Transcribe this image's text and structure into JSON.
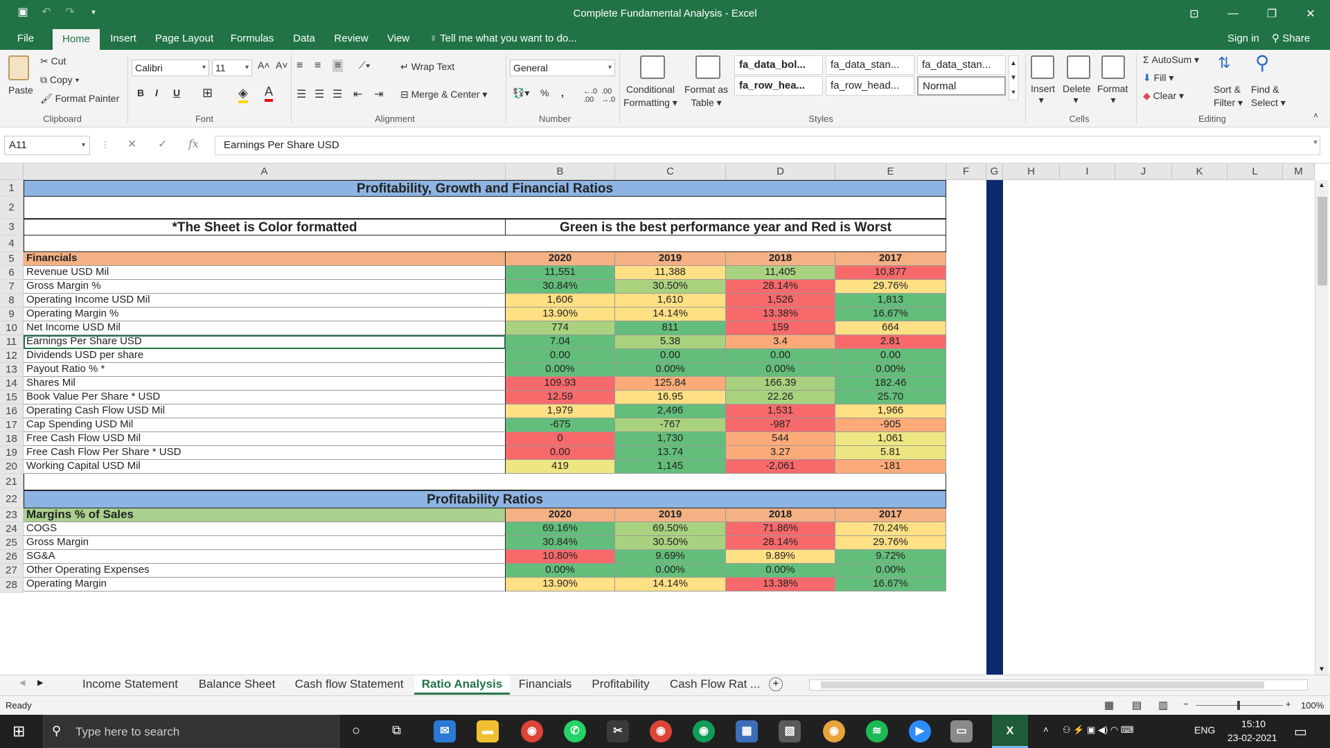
{
  "window": {
    "title": "Complete Fundamental Analysis - Excel",
    "qat_icons": [
      "save-icon",
      "undo-icon",
      "redo-icon",
      "customize-qat-icon"
    ],
    "controls": [
      "ribbon-display-icon",
      "minimize-icon",
      "restore-icon",
      "close-icon"
    ]
  },
  "tabs": [
    "File",
    "Home",
    "Insert",
    "Page Layout",
    "Formulas",
    "Data",
    "Review",
    "View"
  ],
  "active_tab": "Home",
  "tell_me": "Tell me what you want to do...",
  "sign_in": "Sign in",
  "share": "Share",
  "ribbon": {
    "clipboard": {
      "paste": "Paste",
      "cut": "Cut",
      "copy": "Copy",
      "format_painter": "Format Painter",
      "label": "Clipboard"
    },
    "font": {
      "name": "Calibri",
      "size": "11",
      "bold": "B",
      "italic": "I",
      "underline": "U",
      "label": "Font"
    },
    "alignment": {
      "wrap": "Wrap Text",
      "merge": "Merge & Center",
      "label": "Alignment"
    },
    "number": {
      "format": "General",
      "label": "Number"
    },
    "styles": {
      "conditional": [
        "Conditional",
        "Formatting"
      ],
      "format_table": [
        "Format as",
        "Table"
      ],
      "items": [
        "fa_data_bol...",
        "fa_data_stan...",
        "fa_data_stan...",
        "fa_row_hea...",
        "fa_row_head...",
        "Normal"
      ],
      "label": "Styles"
    },
    "cells": {
      "insert": "Insert",
      "delete": "Delete",
      "format": "Format",
      "label": "Cells"
    },
    "editing": {
      "autosum": "AutoSum",
      "fill": "Fill",
      "clear": "Clear",
      "sort": [
        "Sort &",
        "Filter"
      ],
      "find": [
        "Find &",
        "Select"
      ],
      "label": "Editing"
    }
  },
  "namebox": "A11",
  "formula": "Earnings Per Share USD",
  "columns": [
    "A",
    "B",
    "C",
    "D",
    "E",
    "F",
    "G",
    "H",
    "I",
    "J",
    "K",
    "L",
    "M"
  ],
  "row_numbers": [
    "1",
    "2",
    "3",
    "4",
    "5",
    "6",
    "7",
    "8",
    "9",
    "10",
    "11",
    "12",
    "13",
    "14",
    "15",
    "16",
    "17",
    "18",
    "19",
    "20",
    "21",
    "22",
    "23",
    "24",
    "25",
    "26",
    "27",
    "28"
  ],
  "sheet": {
    "title": "Profitability, Growth and Financial Ratios",
    "note_left": "*The Sheet is Color formatted",
    "note_right": "Green is the best performance year and Red is Worst",
    "years": [
      "2020",
      "2019",
      "2018",
      "2017"
    ],
    "financials_header": "Financials",
    "financials": [
      {
        "label": "Revenue USD Mil",
        "values": [
          "11,551",
          "11,388",
          "11,405",
          "10,877"
        ],
        "colors": [
          "g",
          "y",
          "lg",
          "r"
        ]
      },
      {
        "label": "Gross Margin %",
        "values": [
          "30.84%",
          "30.50%",
          "28.14%",
          "29.76%"
        ],
        "colors": [
          "g",
          "lg",
          "r",
          "y"
        ]
      },
      {
        "label": "Operating Income USD Mil",
        "values": [
          "1,606",
          "1,610",
          "1,526",
          "1,813"
        ],
        "colors": [
          "y",
          "y",
          "r",
          "g"
        ]
      },
      {
        "label": "Operating Margin %",
        "values": [
          "13.90%",
          "14.14%",
          "13.38%",
          "16.67%"
        ],
        "colors": [
          "y",
          "y",
          "r",
          "g"
        ]
      },
      {
        "label": "Net Income USD Mil",
        "values": [
          "774",
          "811",
          "159",
          "664"
        ],
        "colors": [
          "lg",
          "g",
          "r",
          "y"
        ]
      },
      {
        "label": "Earnings Per Share USD",
        "values": [
          "7.04",
          "5.38",
          "3.4",
          "2.81"
        ],
        "colors": [
          "g",
          "lg",
          "o",
          "r"
        ]
      },
      {
        "label": "Dividends USD per share",
        "values": [
          "0.00",
          "0.00",
          "0.00",
          "0.00"
        ],
        "colors": [
          "g",
          "g",
          "g",
          "g"
        ]
      },
      {
        "label": "Payout Ratio % *",
        "values": [
          "0.00%",
          "0.00%",
          "0.00%",
          "0.00%"
        ],
        "colors": [
          "g",
          "g",
          "g",
          "g"
        ]
      },
      {
        "label": "Shares Mil",
        "values": [
          "109.93",
          "125.84",
          "166.39",
          "182.46"
        ],
        "colors": [
          "r",
          "o",
          "lg",
          "g"
        ]
      },
      {
        "label": "Book Value Per Share * USD",
        "values": [
          "12.59",
          "16.95",
          "22.26",
          "25.70"
        ],
        "colors": [
          "r",
          "y",
          "lg",
          "g"
        ]
      },
      {
        "label": "Operating Cash Flow USD Mil",
        "values": [
          "1,979",
          "2,496",
          "1,531",
          "1,966"
        ],
        "colors": [
          "y",
          "g",
          "r",
          "y"
        ]
      },
      {
        "label": "Cap Spending USD Mil",
        "values": [
          "-675",
          "-767",
          "-987",
          "-905"
        ],
        "colors": [
          "g",
          "lg",
          "r",
          "o"
        ]
      },
      {
        "label": "Free Cash Flow USD Mil",
        "values": [
          "0",
          "1,730",
          "544",
          "1,061"
        ],
        "colors": [
          "r",
          "g",
          "o",
          "yl"
        ]
      },
      {
        "label": "Free Cash Flow Per Share * USD",
        "values": [
          "0.00",
          "13.74",
          "3.27",
          "5.81"
        ],
        "colors": [
          "r",
          "g",
          "o",
          "yl"
        ]
      },
      {
        "label": "Working Capital USD Mil",
        "values": [
          "419",
          "1,145",
          "-2,061",
          "-181"
        ],
        "colors": [
          "yl",
          "g",
          "r",
          "o"
        ]
      }
    ],
    "profitability_title": "Profitability Ratios",
    "margins_header": "Margins % of Sales",
    "margins": [
      {
        "label": "COGS",
        "values": [
          "69.16%",
          "69.50%",
          "71.86%",
          "70.24%"
        ],
        "colors": [
          "g",
          "lg",
          "r",
          "y"
        ]
      },
      {
        "label": "Gross Margin",
        "values": [
          "30.84%",
          "30.50%",
          "28.14%",
          "29.76%"
        ],
        "colors": [
          "g",
          "lg",
          "r",
          "y"
        ]
      },
      {
        "label": "SG&A",
        "values": [
          "10.80%",
          "9.69%",
          "9.89%",
          "9.72%"
        ],
        "colors": [
          "r",
          "g",
          "y",
          "g"
        ]
      },
      {
        "label": "Other Operating Expenses",
        "values": [
          "0.00%",
          "0.00%",
          "0.00%",
          "0.00%"
        ],
        "colors": [
          "g",
          "g",
          "g",
          "g"
        ]
      },
      {
        "label": "Operating Margin",
        "values": [
          "13.90%",
          "14.14%",
          "13.38%",
          "16.67%"
        ],
        "colors": [
          "y",
          "y",
          "r",
          "g"
        ]
      }
    ]
  },
  "sheet_tabs": [
    "Income Statement",
    "Balance Sheet",
    "Cash flow Statement",
    "Ratio Analysis",
    "Financials",
    "Profitability",
    "Cash Flow Rat ..."
  ],
  "active_sheet": "Ratio Analysis",
  "status": {
    "ready": "Ready",
    "zoom": "100%"
  },
  "taskbar": {
    "search": "Type here to search",
    "lang": "ENG",
    "time": "15:10",
    "date": "23-02-2021"
  },
  "colors": {
    "excel_green": "#217346",
    "header_blue": "#8db4e2",
    "header_orange": "#f4b183",
    "header_green": "#a9d08e",
    "divider_navy": "#0b2a6b"
  }
}
